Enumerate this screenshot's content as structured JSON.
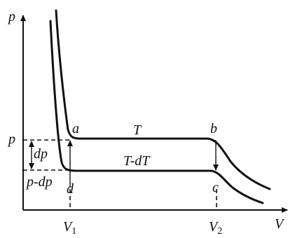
{
  "labels": {
    "p_axis": "p",
    "v_axis": "V",
    "a": "a",
    "b": "b",
    "c": "c",
    "d": "d",
    "T": "T",
    "T_dT": "T-dT",
    "p": "p",
    "dp": "dp",
    "p_dp": "p-dp",
    "V1": {
      "base": "V",
      "sub": "1"
    },
    "V2": {
      "base": "V",
      "sub": "2"
    }
  }
}
